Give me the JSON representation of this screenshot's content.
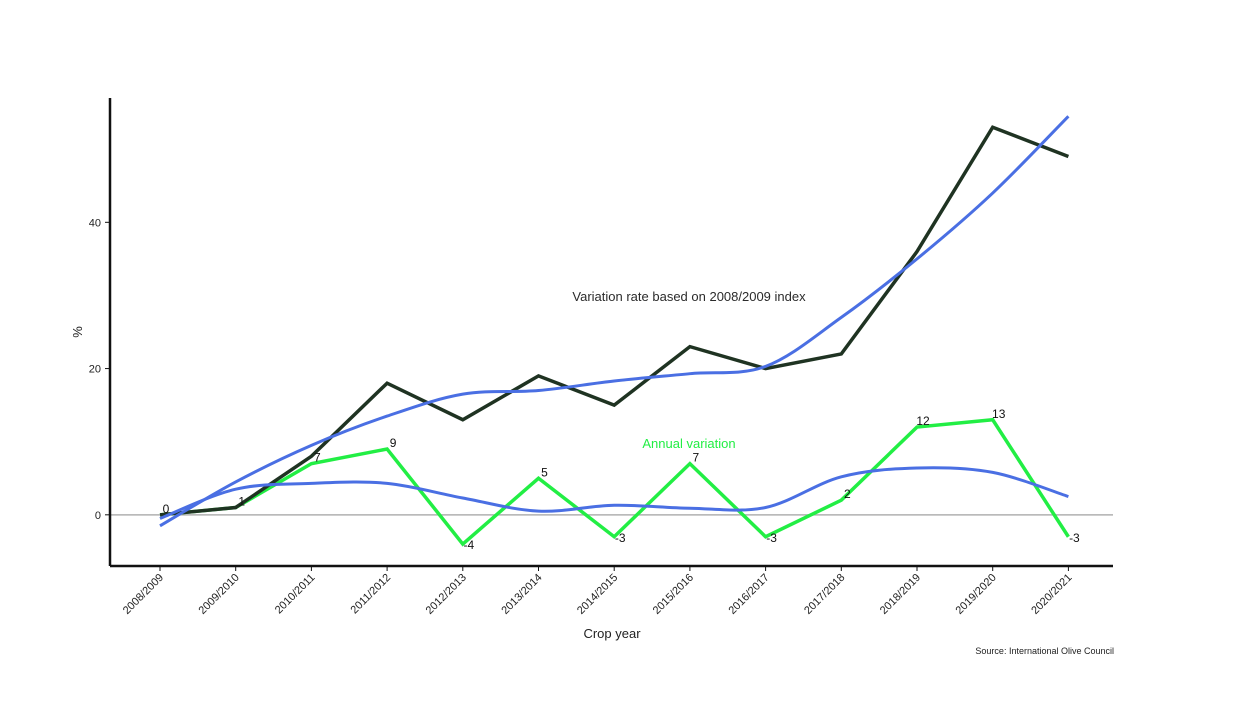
{
  "chart_data": {
    "type": "line",
    "xlabel": "Crop year",
    "ylabel": "%",
    "categories": [
      "2008/2009",
      "2009/2010",
      "2010/2011",
      "2011/2012",
      "2012/2013",
      "2013/2014",
      "2014/2015",
      "2015/2016",
      "2016/2017",
      "2017/2018",
      "2018/2019",
      "2019/2020",
      "2020/2021"
    ],
    "ylim": [
      -7,
      57
    ],
    "yticks": [
      0,
      20,
      40
    ],
    "grid": false,
    "series": [
      {
        "role": "index",
        "values": [
          0,
          1,
          8,
          18,
          13,
          19,
          15,
          23,
          20,
          22,
          36,
          53,
          49
        ],
        "color": "#1f3322"
      },
      {
        "role": "annual",
        "values": [
          0,
          1,
          7,
          9,
          -4,
          5,
          -3,
          7,
          -3,
          2,
          12,
          13,
          -3
        ],
        "labels": [
          "0",
          "1",
          "7",
          "9",
          "-4",
          "5",
          "-3",
          "7",
          "-3",
          "2",
          "12",
          "13",
          "-3"
        ],
        "color": "#22ee44"
      },
      {
        "role": "index-trend",
        "values": [
          -1.5,
          4.5,
          9.5,
          13.5,
          16.5,
          17,
          18.3,
          19.3,
          20.3,
          27,
          35,
          44,
          54.5
        ],
        "color": "#4a6fe3"
      },
      {
        "role": "annual-trend",
        "values": [
          -0.5,
          3.5,
          4.3,
          4.3,
          2.3,
          0.5,
          1.3,
          0.9,
          1,
          5.2,
          6.4,
          5.8,
          2.5
        ],
        "color": "#4a6fe3"
      }
    ],
    "reference_line": {
      "y": 0,
      "color": "#b0b0b0"
    },
    "annotations": [
      {
        "text": "Variation rate based on 2008/2009 index",
        "color": "#2b2b2b"
      },
      {
        "text": "Annual variation",
        "color": "#22ee44"
      }
    ],
    "source": "Source: International Olive Council"
  }
}
